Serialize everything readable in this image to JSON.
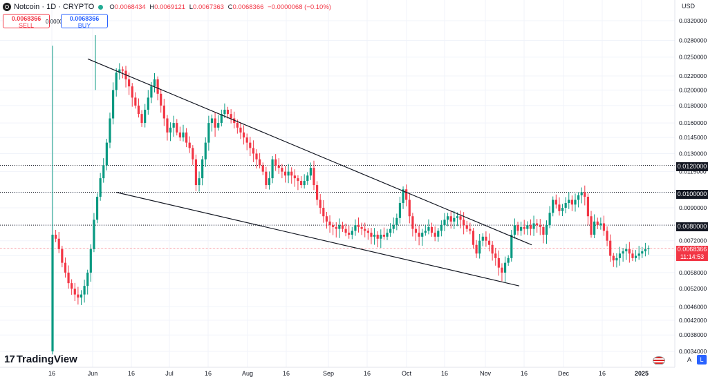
{
  "header": {
    "title": "Notcoin · 1D · CRYPTO",
    "ohlc": [
      {
        "k": "O",
        "v": "0.0068434"
      },
      {
        "k": "H",
        "v": "0.0069121"
      },
      {
        "k": "L",
        "v": "0.0067363"
      },
      {
        "k": "C",
        "v": "0.0068366"
      },
      {
        "k": "",
        "v": "−0.0000068 (−0.10%)"
      }
    ]
  },
  "trade": {
    "sell_price": "0.0068366",
    "sell_label": "SELL",
    "buy_price": "0.0068366",
    "buy_label": "BUY",
    "spread": "0.0000000"
  },
  "currency": "USD",
  "branding": {
    "name": "TradingView",
    "mark": "17"
  },
  "corner": {
    "auto": "A",
    "log": "L"
  },
  "colors": {
    "up": "#089981",
    "down": "#f23645",
    "line": "#131722",
    "last_price_line": "#f23645"
  },
  "markers": {
    "level_tags": [
      "0.0120000",
      "0.0100000",
      "0.0080000"
    ],
    "last_price": "0.0068366",
    "countdown": "11:14:53"
  },
  "chart_data": {
    "type": "candlestick",
    "scale": "log",
    "yaxis_ticks": [
      "0.0320000",
      "0.0280000",
      "0.0250000",
      "0.0220000",
      "0.0200000",
      "0.0180000",
      "0.0160000",
      "0.0145000",
      "0.0130000",
      "0.0115000",
      "0.0100000",
      "0.0090000",
      "0.0080000",
      "0.0072000",
      "0.0065000",
      "0.0058000",
      "0.0052000",
      "0.0046000",
      "0.0042000",
      "0.0038000",
      "0.0034000"
    ],
    "xaxis_ticks": [
      "16",
      "Jun",
      "16",
      "Jul",
      "16",
      "Aug",
      "16",
      "Sep",
      "16",
      "Oct",
      "16",
      "Nov",
      "16",
      "Dec",
      "16",
      "2025"
    ],
    "horizontal_levels": [
      0.012,
      0.01,
      0.008
    ],
    "last_price": 0.0068366,
    "trendlines": [
      {
        "from": [
          "Jun",
          0.0247
        ],
        "to": [
          "Nov 12",
          0.007
        ]
      },
      {
        "from": [
          "Jun 17",
          0.01
        ],
        "to": [
          "Nov 6",
          0.0053
        ]
      }
    ],
    "close_series": [
      0.0075,
      0.0073,
      0.0068,
      0.0062,
      0.0058,
      0.0054,
      0.0052,
      0.005,
      0.0049,
      0.005,
      0.0053,
      0.0058,
      0.0068,
      0.0083,
      0.0097,
      0.011,
      0.012,
      0.014,
      0.0165,
      0.02,
      0.0225,
      0.023,
      0.0228,
      0.0215,
      0.0205,
      0.019,
      0.018,
      0.017,
      0.016,
      0.0175,
      0.019,
      0.0205,
      0.0215,
      0.0195,
      0.018,
      0.0165,
      0.015,
      0.0155,
      0.016,
      0.015,
      0.0145,
      0.015,
      0.014,
      0.0135,
      0.0125,
      0.0105,
      0.011,
      0.0125,
      0.014,
      0.016,
      0.0165,
      0.0155,
      0.016,
      0.017,
      0.0175,
      0.017,
      0.0165,
      0.016,
      0.0155,
      0.015,
      0.0145,
      0.014,
      0.0135,
      0.013,
      0.0125,
      0.012,
      0.0115,
      0.0105,
      0.011,
      0.0125,
      0.012,
      0.0118,
      0.0115,
      0.0112,
      0.0115,
      0.0112,
      0.011,
      0.0108,
      0.0105,
      0.0108,
      0.0112,
      0.0118,
      0.0105,
      0.0095,
      0.009,
      0.0085,
      0.0082,
      0.008,
      0.0079,
      0.0078,
      0.008,
      0.0078,
      0.0076,
      0.0075,
      0.0077,
      0.008,
      0.0079,
      0.0078,
      0.0077,
      0.0076,
      0.0074,
      0.0075,
      0.0073,
      0.0075,
      0.0074,
      0.0076,
      0.0078,
      0.008,
      0.0084,
      0.0093,
      0.0102,
      0.0095,
      0.0085,
      0.0078,
      0.0076,
      0.0074,
      0.0076,
      0.0077,
      0.0079,
      0.0076,
      0.0074,
      0.0077,
      0.008,
      0.0083,
      0.0085,
      0.0082,
      0.0084,
      0.0085,
      0.0083,
      0.008,
      0.0078,
      0.0077,
      0.007,
      0.0066,
      0.0072,
      0.0074,
      0.0072,
      0.007,
      0.0066,
      0.0064,
      0.006,
      0.0058,
      0.0062,
      0.0064,
      0.0075,
      0.008,
      0.0077,
      0.0079,
      0.0078,
      0.008,
      0.0078,
      0.0081,
      0.008,
      0.0079,
      0.0075,
      0.008,
      0.0087,
      0.0095,
      0.0092,
      0.0088,
      0.009,
      0.0093,
      0.0095,
      0.0092,
      0.0095,
      0.0098,
      0.01,
      0.0097,
      0.0085,
      0.0075,
      0.0082,
      0.008,
      0.0081,
      0.0077,
      0.0072,
      0.0065,
      0.0063,
      0.0064,
      0.0066,
      0.0067,
      0.0068,
      0.0066,
      0.0064,
      0.0065,
      0.0066,
      0.0067,
      0.0068,
      0.0068366
    ]
  }
}
